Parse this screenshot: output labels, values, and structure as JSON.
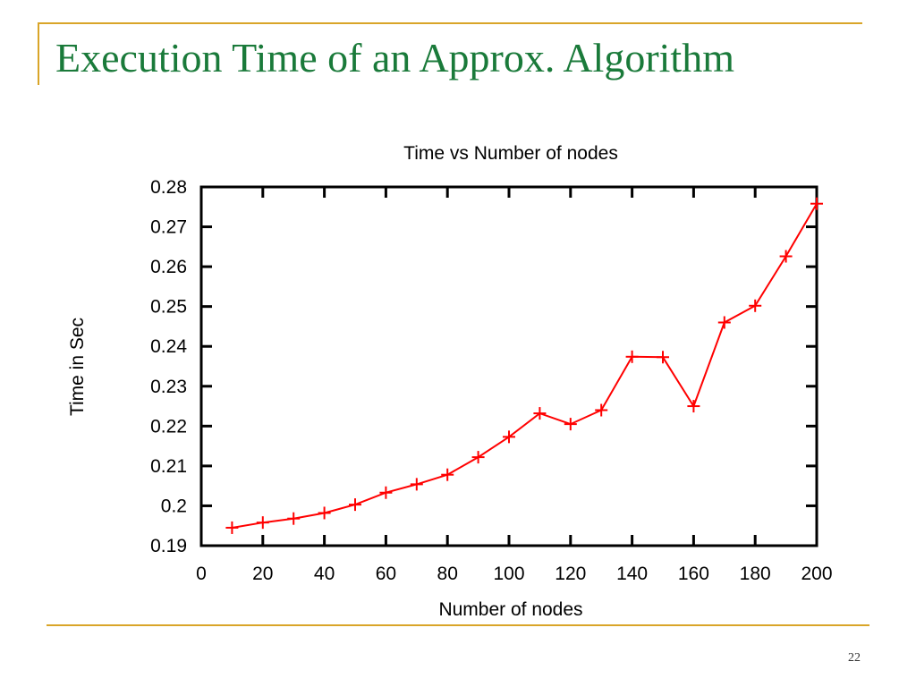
{
  "slide": {
    "title": "Execution Time of an Approx. Algorithm",
    "page_number": "22",
    "accent_color": "#d9a528",
    "title_color": "#1a7a3a"
  },
  "chart_data": {
    "type": "line",
    "title": "Time vs Number of nodes",
    "xlabel": "Number of nodes",
    "ylabel": "Time in Sec",
    "xlim": [
      0,
      200
    ],
    "ylim": [
      0.19,
      0.28
    ],
    "xticks": [
      0,
      20,
      40,
      60,
      80,
      100,
      120,
      140,
      160,
      180,
      200
    ],
    "yticks": [
      "0.19",
      "0.2",
      "0.21",
      "0.22",
      "0.23",
      "0.24",
      "0.25",
      "0.26",
      "0.27",
      "0.28"
    ],
    "grid": false,
    "marker": "plus",
    "series": [
      {
        "color": "#ff0000",
        "x": [
          10,
          20,
          30,
          40,
          50,
          60,
          70,
          80,
          90,
          100,
          110,
          120,
          130,
          140,
          150,
          160,
          170,
          180,
          190,
          200
        ],
        "y": [
          0.1945,
          0.1958,
          0.1968,
          0.1982,
          0.2003,
          0.2033,
          0.2054,
          0.2078,
          0.2122,
          0.2173,
          0.2232,
          0.2205,
          0.224,
          0.2374,
          0.2373,
          0.225,
          0.246,
          0.2502,
          0.2626,
          0.2758
        ]
      }
    ]
  }
}
